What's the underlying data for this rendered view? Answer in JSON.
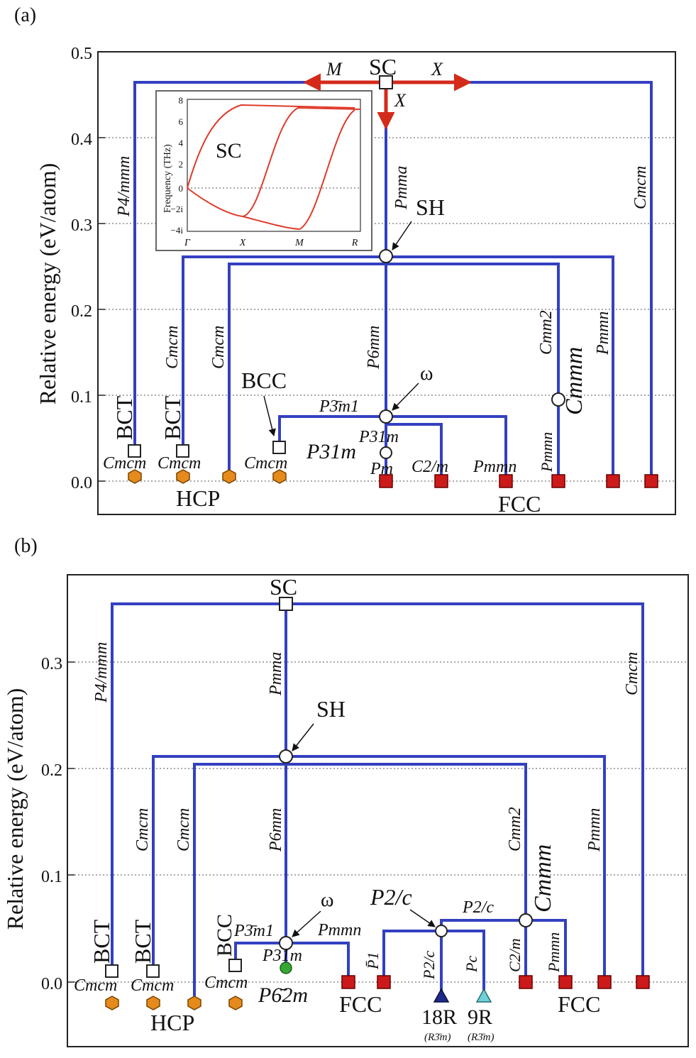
{
  "panel_a": {
    "label": "(a)",
    "ylabel": "Relative energy (eV/atom)",
    "yticks": [
      "0.5",
      "0.4",
      "0.3",
      "0.2",
      "0.1",
      "0.0"
    ],
    "nodes": {
      "sc": "SC",
      "sh": "SH",
      "omega": "ω",
      "bcc": "BCC",
      "bct1": "BCT",
      "bct2": "BCT",
      "hcp": "HCP",
      "fcc": "FCC",
      "cmmm": "Cmmm",
      "p31m_big": "P31m",
      "p3m1": "P3̄m1",
      "p31m_small": "P31m",
      "pm": "Pm",
      "c2m": "C2/m",
      "pmmn": "Pmmn",
      "cmcm1": "Cmcm",
      "cmcm2": "Cmcm",
      "cmcm3": "Cmcm"
    },
    "arrows": {
      "m": "M",
      "x1": "X",
      "x2": "X"
    },
    "vlabels": {
      "p4mmm": "P4/mmm",
      "cmcm_a": "Cmcm",
      "cmcm_b": "Cmcm",
      "pmma": "Pmma",
      "p6mm": "P6mm",
      "cmm2": "Cmm2",
      "pmmn_a": "Pmmn",
      "pmmn_b": "Pmmn",
      "cmcm_r": "Cmcm"
    },
    "inset": {
      "title": "SC",
      "ylabel": "Frequency (THz)",
      "yticks": [
        "8",
        "6",
        "4",
        "2",
        "0",
        "−2i",
        "−4i"
      ],
      "xticks": [
        "Γ",
        "X",
        "M",
        "R"
      ]
    }
  },
  "panel_b": {
    "label": "(b)",
    "ylabel": "Relative energy (eV/atom)",
    "yticks": [
      "0.3",
      "0.2",
      "0.1",
      "0.0"
    ],
    "nodes": {
      "sc": "SC",
      "sh": "SH",
      "omega": "ω",
      "bcc": "BCC",
      "bct1": "BCT",
      "bct2": "BCT",
      "hcp": "HCP",
      "fcc1": "FCC",
      "fcc2": "FCC",
      "cmmm": "Cmmm",
      "p3m1": "P3̄m1",
      "p31m": "P31m",
      "p62m": "P6̄2m",
      "pmmn": "Pmmn",
      "p2c_big": "P2/c",
      "p2c_mid": "P2/c",
      "p2c_v": "P2/c",
      "pc": "Pc",
      "p1": "P̄1",
      "c2m": "C2/m",
      "pmmn_v": "Pmmn",
      "r18": "18R",
      "r9": "9R",
      "r18_sub": "(R3̄m)",
      "r9_sub": "(R3̄m)",
      "cmcm1": "Cmcm",
      "cmcm2": "Cmcm",
      "cmcm3": "Cmcm"
    },
    "vlabels": {
      "p4mmm": "P4/mmm",
      "cmcm_a": "Cmcm",
      "cmcm_b": "Cmcm",
      "pmma": "Pmma",
      "p6mm": "P6mm",
      "cmm2": "Cmm2",
      "pmmn_r": "Pmmn",
      "cmcm_r": "Cmcm"
    }
  },
  "colors": {
    "path": "#3340c0",
    "arrow": "#d42a1a",
    "fcc_marker": "#cc1a1a",
    "hcp_marker": "#e58a1c",
    "p62m_marker": "#36a832",
    "r18_marker": "#1f2a8a",
    "r9_marker": "#6fd0d8"
  }
}
